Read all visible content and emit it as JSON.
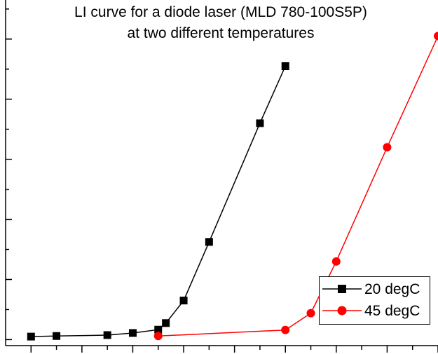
{
  "chart_data": {
    "type": "line",
    "title": "LI curve for a diode laser (MLD 780-100S5P)",
    "subtitle": "at two different temperatures",
    "xlabel": "",
    "ylabel": "",
    "xlim": [
      -1,
      16
    ],
    "ylim": [
      -0.2,
      11.3
    ],
    "x_major_step": 2,
    "y_major_step": 2,
    "grid": false,
    "legend_position": "lower-right",
    "series": [
      {
        "name": "20 degC",
        "color": "#000000",
        "marker": "square",
        "points": [
          [
            0,
            0.1
          ],
          [
            1,
            0.12
          ],
          [
            3,
            0.15
          ],
          [
            4,
            0.22
          ],
          [
            5,
            0.33
          ],
          [
            5.3,
            0.55
          ],
          [
            6,
            1.3
          ],
          [
            7,
            3.25
          ],
          [
            9,
            7.2
          ],
          [
            10,
            9.1
          ]
        ]
      },
      {
        "name": "45 degC",
        "color": "#ff0000",
        "marker": "circle",
        "points": [
          [
            5,
            0.12
          ],
          [
            10,
            0.32
          ],
          [
            11,
            0.88
          ],
          [
            12,
            2.6
          ],
          [
            14,
            6.4
          ],
          [
            16,
            10.1
          ]
        ]
      }
    ]
  }
}
